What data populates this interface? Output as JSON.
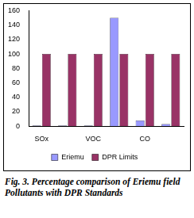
{
  "chart_data": {
    "type": "bar",
    "caption": "Fig. 3. Percentage comparison of Eriemu field Pollutants with DPR Standards",
    "categories": [
      "SOx",
      null,
      "VOC",
      null,
      "CO",
      null
    ],
    "series": [
      {
        "name": "Eriemu",
        "color": "#9999ff",
        "values": [
          1,
          1,
          1,
          150,
          8,
          3
        ]
      },
      {
        "name": "DPR Limits",
        "color": "#993366",
        "values": [
          100,
          100,
          100,
          100,
          100,
          100
        ]
      }
    ],
    "ylim": [
      0,
      160
    ],
    "yticks": [
      0,
      20,
      40,
      60,
      80,
      100,
      120,
      140,
      160
    ],
    "grid": false,
    "legend": "bottom"
  }
}
